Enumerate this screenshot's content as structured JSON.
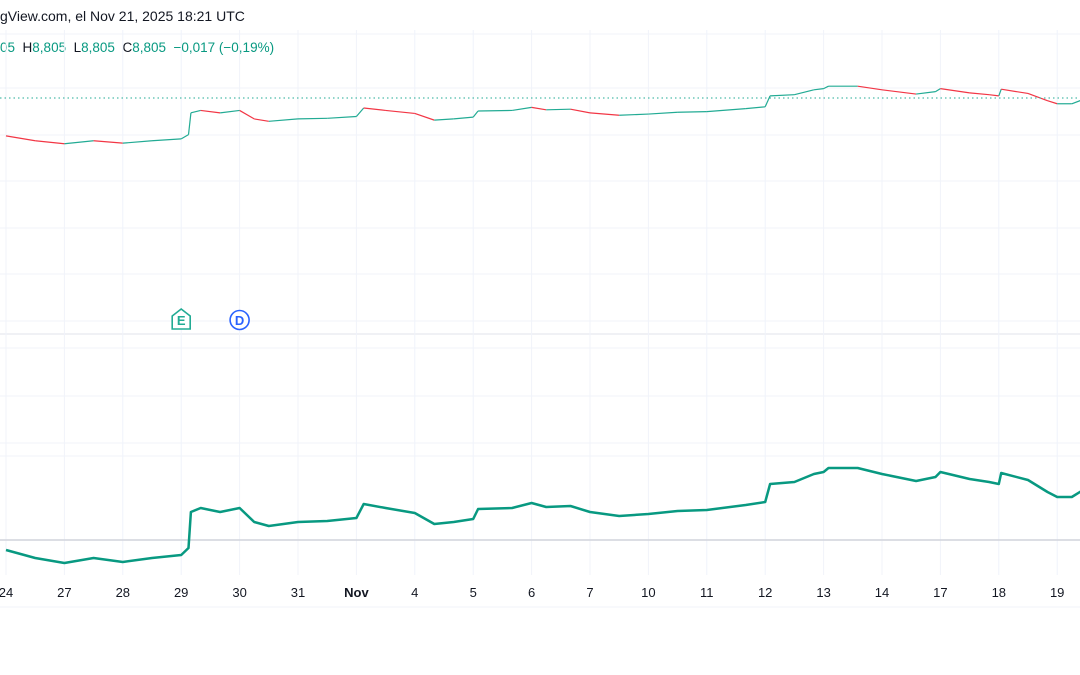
{
  "header": {
    "title": "gView.com, el Nov 21, 2025 18:21 UTC",
    "ohlc": {
      "open_value": "05",
      "high_label": "H",
      "high_value": "8,805",
      "low_label": "L",
      "low_value": "8,805",
      "close_label": "C",
      "close_value": "8,805",
      "change": "−0,017 (−0,19%)"
    }
  },
  "markers": [
    {
      "label": "E",
      "kind": "earnings",
      "date": "2025-10-29",
      "color": "#22ab94"
    },
    {
      "label": "D",
      "kind": "dividend",
      "date": "2025-10-30",
      "color": "#2962ff"
    }
  ],
  "colors": {
    "line": "#089981",
    "up": "#22ab94",
    "down": "#f23645",
    "grid": "#f0f3fa",
    "baseline": "#d1d4dc"
  },
  "chart_data": {
    "type": "line",
    "current_price": 8.805,
    "grid": true,
    "x_ticks": [
      {
        "date": "2025-10-24",
        "label": "24"
      },
      {
        "date": "2025-10-27",
        "label": "27"
      },
      {
        "date": "2025-10-28",
        "label": "28"
      },
      {
        "date": "2025-10-29",
        "label": "29"
      },
      {
        "date": "2025-10-30",
        "label": "30"
      },
      {
        "date": "2025-10-31",
        "label": "31"
      },
      {
        "date": "2025-11-03",
        "label": "Nov",
        "bold": true
      },
      {
        "date": "2025-11-04",
        "label": "4"
      },
      {
        "date": "2025-11-05",
        "label": "5"
      },
      {
        "date": "2025-11-06",
        "label": "6"
      },
      {
        "date": "2025-11-07",
        "label": "7"
      },
      {
        "date": "2025-11-10",
        "label": "10"
      },
      {
        "date": "2025-11-11",
        "label": "11"
      },
      {
        "date": "2025-11-12",
        "label": "12"
      },
      {
        "date": "2025-11-13",
        "label": "13"
      },
      {
        "date": "2025-11-14",
        "label": "14"
      },
      {
        "date": "2025-11-17",
        "label": "17"
      },
      {
        "date": "2025-11-18",
        "label": "18"
      },
      {
        "date": "2025-11-19",
        "label": "19"
      }
    ],
    "series": [
      {
        "points": [
          [
            "2025-10-24 00:00",
            8.68
          ],
          [
            "2025-10-24 12:00",
            8.664
          ],
          [
            "2025-10-27 00:00",
            8.654
          ],
          [
            "2025-10-27 12:00",
            8.664
          ],
          [
            "2025-10-28 00:00",
            8.656
          ],
          [
            "2025-10-28 12:00",
            8.664
          ],
          [
            "2025-10-29 00:00",
            8.67
          ],
          [
            "2025-10-29 03:00",
            8.684
          ],
          [
            "2025-10-29 04:00",
            8.756
          ],
          [
            "2025-10-29 08:00",
            8.764
          ],
          [
            "2025-10-29 16:00",
            8.756
          ],
          [
            "2025-10-30 00:00",
            8.764
          ],
          [
            "2025-10-30 06:00",
            8.736
          ],
          [
            "2025-10-30 12:00",
            8.728
          ],
          [
            "2025-10-31 00:00",
            8.736
          ],
          [
            "2025-10-31 12:00",
            8.738
          ],
          [
            "2025-11-03 00:00",
            8.744
          ],
          [
            "2025-11-03 03:00",
            8.772
          ],
          [
            "2025-11-03 12:00",
            8.764
          ],
          [
            "2025-11-04 00:00",
            8.754
          ],
          [
            "2025-11-04 08:00",
            8.732
          ],
          [
            "2025-11-04 16:00",
            8.736
          ],
          [
            "2025-11-05 00:00",
            8.742
          ],
          [
            "2025-11-05 02:00",
            8.762
          ],
          [
            "2025-11-05 16:00",
            8.764
          ],
          [
            "2025-11-06 00:00",
            8.774
          ],
          [
            "2025-11-06 06:00",
            8.766
          ],
          [
            "2025-11-06 16:00",
            8.768
          ],
          [
            "2025-11-07 00:00",
            8.756
          ],
          [
            "2025-11-07 12:00",
            8.748
          ],
          [
            "2025-11-10 00:00",
            8.752
          ],
          [
            "2025-11-10 12:00",
            8.758
          ],
          [
            "2025-11-11 00:00",
            8.76
          ],
          [
            "2025-11-11 16:00",
            8.77
          ],
          [
            "2025-11-12 00:00",
            8.776
          ],
          [
            "2025-11-12 02:00",
            8.812
          ],
          [
            "2025-11-12 12:00",
            8.816
          ],
          [
            "2025-11-12 20:00",
            8.832
          ],
          [
            "2025-11-13 00:00",
            8.836
          ],
          [
            "2025-11-13 02:00",
            8.844
          ],
          [
            "2025-11-13 14:00",
            8.844
          ],
          [
            "2025-11-14 00:00",
            8.832
          ],
          [
            "2025-11-14 14:00",
            8.818
          ],
          [
            "2025-11-14 22:00",
            8.826
          ],
          [
            "2025-11-17 00:00",
            8.836
          ],
          [
            "2025-11-17 12:00",
            8.822
          ],
          [
            "2025-11-17 20:00",
            8.816
          ],
          [
            "2025-11-18 00:00",
            8.812
          ],
          [
            "2025-11-18 01:00",
            8.834
          ],
          [
            "2025-11-18 12:00",
            8.82
          ],
          [
            "2025-11-18 20:00",
            8.796
          ],
          [
            "2025-11-19 00:00",
            8.786
          ],
          [
            "2025-11-19 06:00",
            8.786
          ],
          [
            "2025-11-19 10:00",
            8.798
          ]
        ]
      }
    ]
  }
}
